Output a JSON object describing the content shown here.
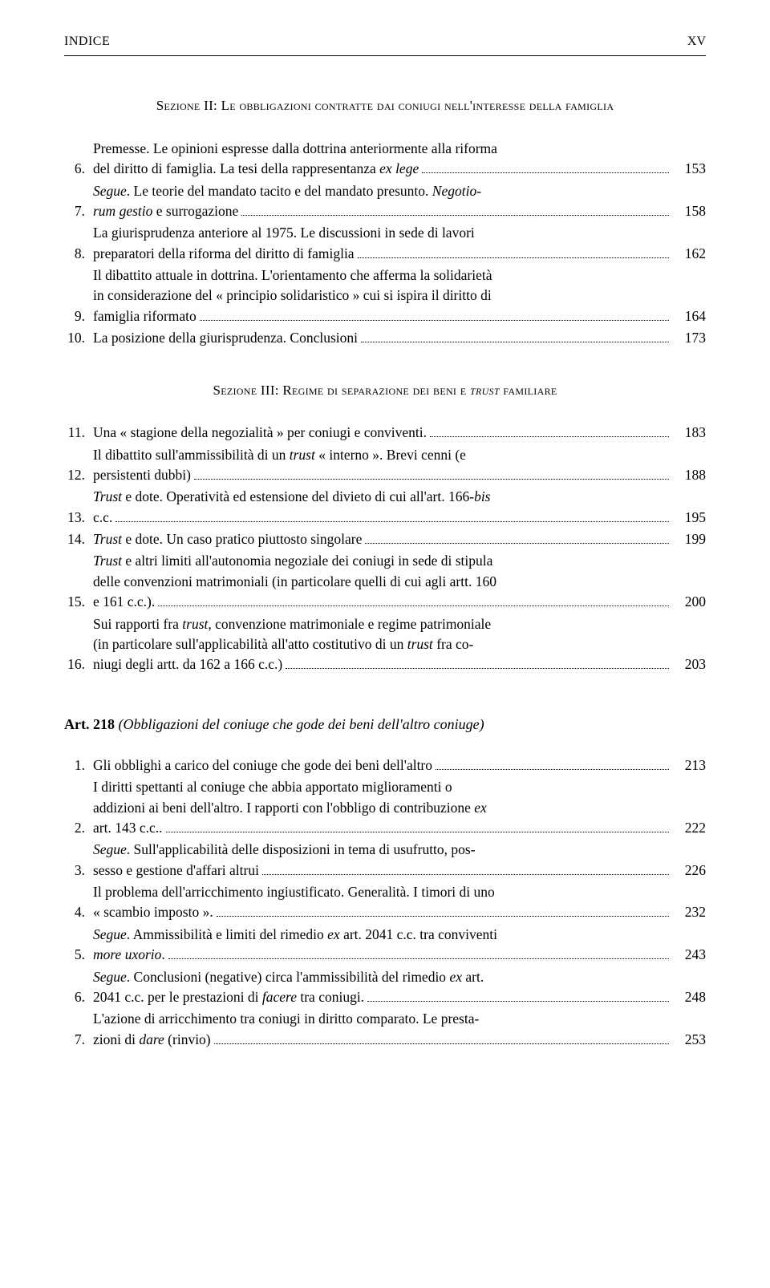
{
  "header": {
    "left": "INDICE",
    "right": "XV"
  },
  "sec2": {
    "title": "Sezione II: Le obbligazioni contratte dai coniugi nell'interesse della famiglia",
    "items": [
      {
        "n": "6.",
        "lines": [
          "Premesse. Le opinioni espresse dalla dottrina anteriormente alla riforma"
        ],
        "last": "del diritto di famiglia. La tesi della rappresentanza <em>ex lege</em>",
        "page": "153"
      },
      {
        "n": "7.",
        "lines": [
          "<em>Segue</em>. Le teorie del mandato tacito e del mandato presunto. <em>Negotio-</em>"
        ],
        "last": "<em>rum gestio</em> e surrogazione",
        "page": "158"
      },
      {
        "n": "8.",
        "lines": [
          "La giurisprudenza anteriore al 1975. Le discussioni in sede di lavori"
        ],
        "last": "preparatori della riforma del diritto di famiglia",
        "page": "162"
      },
      {
        "n": "9.",
        "lines": [
          "Il dibattito attuale in dottrina. L'orientamento che afferma la solidarietà",
          "in considerazione del « principio solidaristico » cui si ispira il diritto di"
        ],
        "last": "famiglia riformato",
        "page": "164"
      },
      {
        "n": "10.",
        "lines": [],
        "last": "La posizione della giurisprudenza. Conclusioni",
        "page": "173"
      }
    ]
  },
  "sec3": {
    "title": "Sezione III: Regime di separazione dei beni e <em>trust</em> familiare",
    "items": [
      {
        "n": "11.",
        "lines": [],
        "last": "Una « stagione della negozialità » per coniugi e conviventi.",
        "page": "183"
      },
      {
        "n": "12.",
        "lines": [
          "Il dibattito sull'ammissibilità di un <em>trust</em> « interno ». Brevi cenni (e"
        ],
        "last": "persistenti dubbi)",
        "page": "188"
      },
      {
        "n": "13.",
        "lines": [
          "<em>Trust</em> e dote. Operatività ed estensione del divieto di cui all'art. 166-<em>bis</em>"
        ],
        "last": "c.c.",
        "page": "195"
      },
      {
        "n": "14.",
        "lines": [],
        "last": "<em>Trust</em> e dote. Un caso pratico piuttosto singolare",
        "page": "199"
      },
      {
        "n": "15.",
        "lines": [
          "<em>Trust</em> e altri limiti all'autonomia negoziale dei coniugi in sede di stipula",
          "delle convenzioni matrimoniali (in particolare quelli di cui agli artt. 160"
        ],
        "last": "e 161 c.c.).",
        "page": "200"
      },
      {
        "n": "16.",
        "lines": [
          "Sui rapporti fra <em>trust</em>, convenzione matrimoniale e regime patrimoniale",
          "(in particolare sull'applicabilità all'atto costitutivo di un <em>trust</em> fra co-"
        ],
        "last": "niugi degli artt. da 162 a 166 c.c.)",
        "page": "203"
      }
    ]
  },
  "art218": {
    "label": "Art. 218",
    "title": "(Obbligazioni del coniuge che gode dei beni dell'altro coniuge)",
    "items": [
      {
        "n": "1.",
        "lines": [],
        "last": "Gli obblighi a carico del coniuge che gode dei beni dell'altro",
        "page": "213"
      },
      {
        "n": "2.",
        "lines": [
          "I diritti spettanti al coniuge che abbia apportato miglioramenti o",
          "addizioni ai beni dell'altro. I rapporti con l'obbligo di contribuzione <em>ex</em>"
        ],
        "last": "art. 143 c.c..",
        "page": "222"
      },
      {
        "n": "3.",
        "lines": [
          "<em>Segue</em>. Sull'applicabilità delle disposizioni in tema di usufrutto, pos-"
        ],
        "last": "sesso e gestione d'affari altrui",
        "page": "226"
      },
      {
        "n": "4.",
        "lines": [
          "Il problema dell'arricchimento ingiustificato. Generalità. I timori di uno"
        ],
        "last": "« scambio imposto ».",
        "page": "232"
      },
      {
        "n": "5.",
        "lines": [
          "<em>Segue</em>. Ammissibilità e limiti del rimedio <em>ex</em> art. 2041 c.c. tra conviventi"
        ],
        "last": "<em>more uxorio</em>.",
        "page": "243"
      },
      {
        "n": "6.",
        "lines": [
          "<em>Segue</em>. Conclusioni (negative) circa l'ammissibilità del rimedio <em>ex</em> art."
        ],
        "last": "2041 c.c. per le prestazioni di <em>facere</em> tra coniugi.",
        "page": "248"
      },
      {
        "n": "7.",
        "lines": [
          "L'azione di arricchimento tra coniugi in diritto comparato. Le presta-"
        ],
        "last": "zioni di <em>dare</em> (rinvio)",
        "page": "253"
      }
    ]
  }
}
